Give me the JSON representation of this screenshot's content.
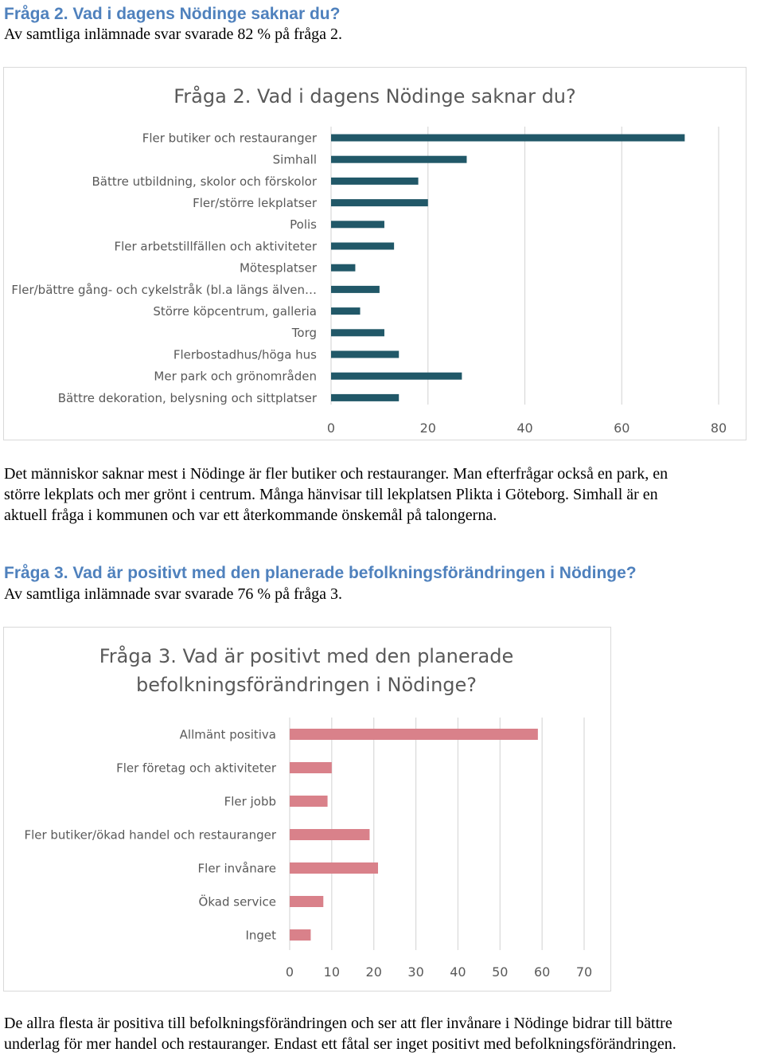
{
  "section2": {
    "heading": "Fråga 2. Vad i dagens Nödinge saknar du?",
    "response_rate": "Av samtliga inlämnade svar svarade 82 % på fråga 2.",
    "paragraph": [
      "Det människor saknar mest i Nödinge är fler butiker och restauranger. Man efterfrågar också en park, en",
      "större lekplats och mer grönt i centrum. Många hänvisar till lekplatsen Plikta i Göteborg. Simhall är en",
      "aktuell fråga i kommunen och var ett återkommande önskemål på talongerna."
    ]
  },
  "section3": {
    "heading": "Fråga 3. Vad är positivt med den planerade befolkningsförändringen i Nödinge?",
    "response_rate": "Av samtliga inlämnade svar svarade 76 % på fråga 3.",
    "paragraph": [
      "De allra flesta är positiva till befolkningsförändringen och ser att fler invånare i Nödinge bidrar till bättre",
      "underlag för mer handel och restauranger. Endast ett fåtal ser inget positivt med befolkningsförändringen."
    ]
  },
  "colors": {
    "heading": "#4f81bd",
    "chart1_bar": "#215868",
    "chart2_bar": "#d9818a",
    "grid": "#d9d9d9",
    "label": "#595959"
  },
  "chart_data": [
    {
      "type": "bar",
      "orientation": "horizontal",
      "title": "Fråga 2. Vad i dagens Nödinge saknar du?",
      "categories": [
        "Fler butiker och restauranger",
        "Simhall",
        "Bättre utbildning, skolor och förskolor",
        "Fler/större lekplatser",
        "Polis",
        "Fler arbetstillfällen och aktiviteter",
        "Mötesplatser",
        "Fler/bättre gång- och cykelstråk (bl.a längs älven…",
        "Större köpcentrum, galleria",
        "Torg",
        "Flerbostadhus/höga hus",
        "Mer park och grönområden",
        "Bättre dekoration, belysning och sittplatser"
      ],
      "values": [
        73,
        28,
        18,
        20,
        11,
        13,
        5,
        10,
        6,
        11,
        14,
        27,
        14
      ],
      "xlim": [
        0,
        80
      ],
      "xticks": [
        "0",
        "20",
        "40",
        "60",
        "80"
      ],
      "grid": true,
      "legend": "none"
    },
    {
      "type": "bar",
      "orientation": "horizontal",
      "title_lines": [
        "Fråga 3. Vad är positivt med den planerade",
        "befolkningsförändringen i Nödinge?"
      ],
      "categories": [
        "Allmänt positiva",
        "Fler företag och aktiviteter",
        "Fler jobb",
        "Fler butiker/ökad handel och restauranger",
        "Fler invånare",
        "Ökad service",
        "Inget"
      ],
      "values": [
        59,
        10,
        9,
        19,
        21,
        8,
        5
      ],
      "xlim": [
        0,
        70
      ],
      "xticks": [
        "0",
        "10",
        "20",
        "30",
        "40",
        "50",
        "60",
        "70"
      ],
      "grid": true,
      "legend": "none"
    }
  ]
}
